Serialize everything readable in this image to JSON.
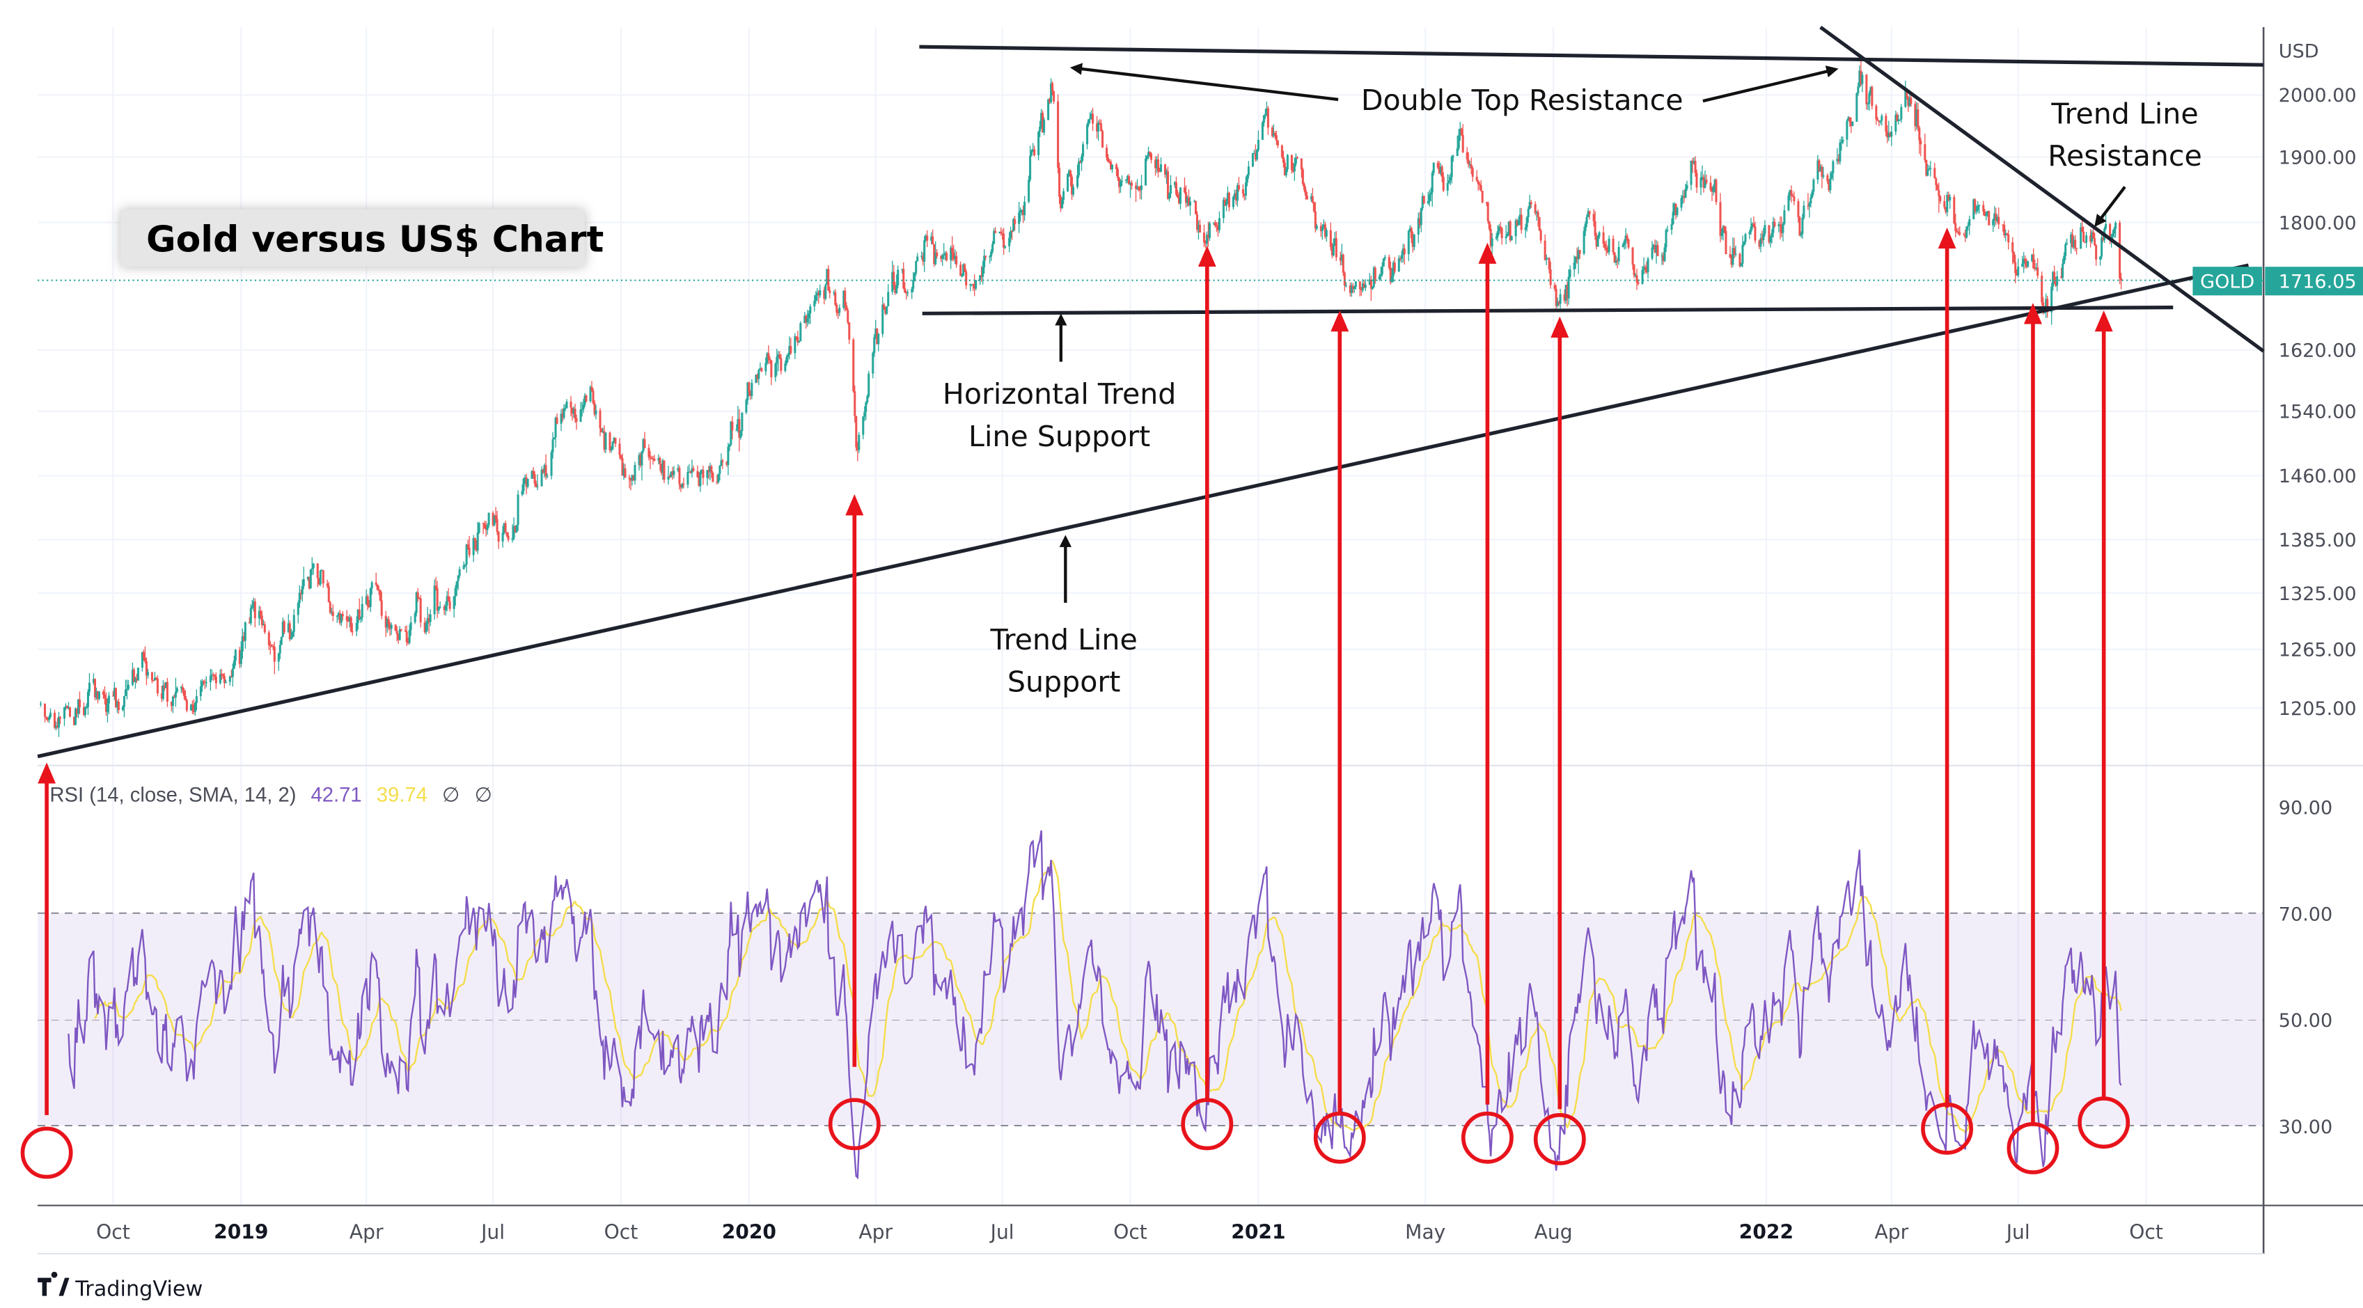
{
  "title": "Gold versus US$ Chart",
  "branding": "TradingView",
  "colors": {
    "up": "#26a69a",
    "down": "#ef5350",
    "rsi": "#7e57c2",
    "rsi_sma": "#f5dd4b",
    "annotation_red": "#e8131b",
    "annotation_black": "#1e222d",
    "price_label": "#26a69a"
  },
  "price_axis": {
    "currency": "USD",
    "scale": "log",
    "ticks": [
      "2000.00",
      "1900.00",
      "1800.00",
      "1620.00",
      "1540.00",
      "1460.00",
      "1385.00",
      "1325.00",
      "1265.00",
      "1205.00"
    ],
    "symbol_label": "GOLD",
    "last_price": "1716.05"
  },
  "rsi_axis": {
    "ticks": [
      "90.00",
      "70.00",
      "50.00",
      "30.00"
    ],
    "band": [
      30,
      70
    ]
  },
  "time_axis": {
    "ticks": [
      {
        "label": "Oct",
        "date": "2018-10-01",
        "year": false
      },
      {
        "label": "2019",
        "date": "2019-01-01",
        "year": true
      },
      {
        "label": "Apr",
        "date": "2019-04-01",
        "year": false
      },
      {
        "label": "Jul",
        "date": "2019-07-01",
        "year": false
      },
      {
        "label": "Oct",
        "date": "2019-10-01",
        "year": false
      },
      {
        "label": "2020",
        "date": "2020-01-01",
        "year": true
      },
      {
        "label": "Apr",
        "date": "2020-04-01",
        "year": false
      },
      {
        "label": "Jul",
        "date": "2020-07-01",
        "year": false
      },
      {
        "label": "Oct",
        "date": "2020-10-01",
        "year": false
      },
      {
        "label": "2021",
        "date": "2021-01-01",
        "year": true
      },
      {
        "label": "May",
        "date": "2021-05-01",
        "year": false
      },
      {
        "label": "Aug",
        "date": "2021-08-01",
        "year": false
      },
      {
        "label": "2022",
        "date": "2022-01-01",
        "year": true
      },
      {
        "label": "Apr",
        "date": "2022-04-01",
        "year": false
      },
      {
        "label": "Jul",
        "date": "2022-07-01",
        "year": false
      },
      {
        "label": "Oct",
        "date": "2022-10-01",
        "year": false
      }
    ]
  },
  "rsi_legend": {
    "label": "RSI (14, close, SMA, 14, 2)",
    "rsi_value": "42.71",
    "sma_value": "39.74",
    "extra1": "∅",
    "extra2": "∅"
  },
  "annotations": {
    "double_top": "Double Top Resistance",
    "horizontal_support_1": "Horizontal Trend",
    "horizontal_support_2": "Line Support",
    "trend_support_1": "Trend Line",
    "trend_support_2": "Support",
    "trend_resistance_1": "Trend Line",
    "trend_resistance_2": "Resistance"
  },
  "chart_data": {
    "type": "candlestick",
    "title": "Gold versus US$ Chart",
    "y_unit": "USD",
    "y_scale": "log",
    "ylim": [
      1150,
      2100
    ],
    "grid": true,
    "indicator": {
      "name": "RSI (14, close, SMA, 14, 2)",
      "last_rsi": 42.71,
      "last_sma": 39.74,
      "ylim": [
        10,
        100
      ],
      "band": [
        30,
        70
      ]
    },
    "price_path": [
      [
        "2018-08-10",
        1210
      ],
      [
        "2018-08-17",
        1175
      ],
      [
        "2018-09-15",
        1195
      ],
      [
        "2018-10-15",
        1225
      ],
      [
        "2018-11-15",
        1215
      ],
      [
        "2018-12-15",
        1245
      ],
      [
        "2019-01-15",
        1290
      ],
      [
        "2019-02-20",
        1340
      ],
      [
        "2019-03-15",
        1300
      ],
      [
        "2019-04-20",
        1275
      ],
      [
        "2019-05-15",
        1295
      ],
      [
        "2019-06-10",
        1330
      ],
      [
        "2019-06-25",
        1415
      ],
      [
        "2019-07-15",
        1410
      ],
      [
        "2019-08-15",
        1515
      ],
      [
        "2019-09-05",
        1550
      ],
      [
        "2019-10-01",
        1480
      ],
      [
        "2019-11-15",
        1465
      ],
      [
        "2019-12-15",
        1475
      ],
      [
        "2020-01-08",
        1570
      ],
      [
        "2020-02-24",
        1680
      ],
      [
        "2020-03-09",
        1680
      ],
      [
        "2020-03-19",
        1475
      ],
      [
        "2020-04-14",
        1725
      ],
      [
        "2020-05-15",
        1740
      ],
      [
        "2020-06-15",
        1725
      ],
      [
        "2020-07-10",
        1800
      ],
      [
        "2020-08-06",
        2065
      ],
      [
        "2020-08-11",
        1880
      ],
      [
        "2020-09-01",
        1970
      ],
      [
        "2020-09-25",
        1860
      ],
      [
        "2020-10-15",
        1900
      ],
      [
        "2020-11-30",
        1770
      ],
      [
        "2021-01-05",
        1950
      ],
      [
        "2021-02-01",
        1860
      ],
      [
        "2021-03-08",
        1685
      ],
      [
        "2021-04-01",
        1730
      ],
      [
        "2021-05-25",
        1905
      ],
      [
        "2021-06-17",
        1770
      ],
      [
        "2021-07-15",
        1830
      ],
      [
        "2021-08-09",
        1690
      ],
      [
        "2021-08-25",
        1795
      ],
      [
        "2021-09-29",
        1725
      ],
      [
        "2021-11-16",
        1865
      ],
      [
        "2021-12-15",
        1770
      ],
      [
        "2022-01-25",
        1850
      ],
      [
        "2022-02-15",
        1870
      ],
      [
        "2022-03-08",
        2050
      ],
      [
        "2022-03-29",
        1900
      ],
      [
        "2022-04-18",
        1990
      ],
      [
        "2022-05-16",
        1790
      ],
      [
        "2022-06-15",
        1830
      ],
      [
        "2022-07-21",
        1690
      ],
      [
        "2022-08-15",
        1800
      ],
      [
        "2022-09-13",
        1716.05
      ]
    ]
  }
}
